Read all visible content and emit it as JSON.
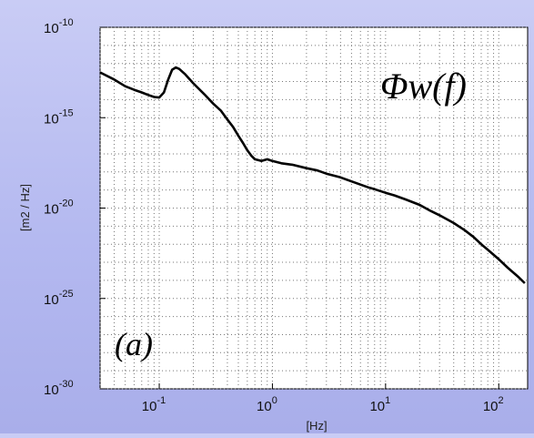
{
  "chart_data": {
    "type": "line",
    "x_scale": "log",
    "y_scale": "log",
    "xlim": [
      0.03,
      180
    ],
    "ylim": [
      1e-30,
      1e-10
    ],
    "grid": true,
    "xlabel": "[Hz]",
    "ylabel": "[m2 / Hz]",
    "x_ticks": [
      {
        "value": 0.1,
        "base": "10",
        "exp": "-1"
      },
      {
        "value": 1,
        "base": "10",
        "exp": "0"
      },
      {
        "value": 10,
        "base": "10",
        "exp": "1"
      },
      {
        "value": 100,
        "base": "10",
        "exp": "2"
      }
    ],
    "y_ticks": [
      {
        "value": 1e-10,
        "base": "10",
        "exp": "-10"
      },
      {
        "value": 1e-15,
        "base": "10",
        "exp": "-15"
      },
      {
        "value": 1e-20,
        "base": "10",
        "exp": "-20"
      },
      {
        "value": 1e-25,
        "base": "10",
        "exp": "-25"
      },
      {
        "value": 1e-30,
        "base": "10",
        "exp": "-30"
      }
    ],
    "annotations": [
      {
        "text": "Φw(f)",
        "position": "top-right"
      },
      {
        "text": "(a)",
        "position": "bottom-left"
      }
    ],
    "series": [
      {
        "color": "#000000",
        "x": [
          0.03,
          0.04,
          0.05,
          0.06,
          0.07,
          0.08,
          0.09,
          0.1,
          0.11,
          0.12,
          0.13,
          0.14,
          0.15,
          0.17,
          0.2,
          0.25,
          0.3,
          0.35,
          0.4,
          0.45,
          0.5,
          0.55,
          0.6,
          0.65,
          0.7,
          0.8,
          0.9,
          1.0,
          1.2,
          1.5,
          2,
          2.5,
          3,
          4,
          5,
          6,
          7,
          8,
          10,
          12,
          15,
          20,
          25,
          30,
          40,
          50,
          60,
          70,
          80,
          100,
          120,
          150,
          170
        ],
        "y": [
          3.2e-13,
          1.3e-13,
          5.5e-14,
          3.5e-14,
          2.5e-14,
          1.8e-14,
          1.4e-14,
          1.3e-14,
          2.5e-14,
          1.3e-13,
          4.5e-13,
          6e-13,
          5e-13,
          2.5e-13,
          8e-14,
          2e-14,
          6e-15,
          2.5e-15,
          8e-16,
          3e-16,
          1e-16,
          4e-17,
          1.6e-17,
          8e-18,
          5e-18,
          4e-18,
          5e-18,
          4e-18,
          3e-18,
          2.5e-18,
          1.6e-18,
          1.2e-18,
          8e-19,
          5e-19,
          3e-19,
          2e-19,
          1.4e-19,
          1.1e-19,
          7e-20,
          5e-20,
          3e-20,
          1.5e-20,
          7e-21,
          4e-21,
          1.5e-21,
          6e-22,
          2.5e-22,
          1e-22,
          5e-23,
          1.5e-23,
          5e-24,
          1.5e-24,
          7e-25
        ]
      }
    ]
  }
}
